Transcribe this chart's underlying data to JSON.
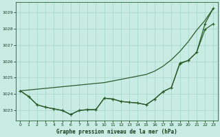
{
  "title": "Graphe pression niveau de la mer (hPa)",
  "background_color": "#c8ebe4",
  "grid_color": "#a8d8cc",
  "line_color": "#2a5c2a",
  "text_color": "#1a3a1a",
  "ylim": [
    1022.4,
    1029.6
  ],
  "xlim": [
    -0.5,
    23.5
  ],
  "yticks": [
    1023,
    1024,
    1025,
    1026,
    1027,
    1028,
    1029
  ],
  "xticks": [
    0,
    1,
    2,
    3,
    4,
    5,
    6,
    7,
    8,
    9,
    10,
    11,
    12,
    13,
    14,
    15,
    16,
    17,
    18,
    19,
    20,
    21,
    22,
    23
  ],
  "series_smooth": [
    1024.2,
    1024.25,
    1024.3,
    1024.35,
    1024.4,
    1024.45,
    1024.5,
    1024.55,
    1024.6,
    1024.65,
    1024.7,
    1024.8,
    1024.9,
    1025.0,
    1025.1,
    1025.2,
    1025.4,
    1025.7,
    1026.1,
    1026.6,
    1027.2,
    1027.9,
    1028.5,
    1029.25
  ],
  "series_main": [
    1024.2,
    1023.85,
    1023.35,
    1023.2,
    1023.1,
    1023.0,
    1022.75,
    1023.0,
    1023.05,
    1023.05,
    1023.75,
    1023.7,
    1023.55,
    1023.5,
    1023.45,
    1023.35,
    1023.7,
    1024.15,
    1024.4,
    1025.9,
    1026.05,
    1026.55,
    1028.3,
    1029.25
  ],
  "series_secondary": [
    1024.2,
    1023.85,
    1023.35,
    1023.2,
    1023.1,
    1023.0,
    1022.75,
    1023.0,
    1023.05,
    1023.05,
    1023.75,
    1023.7,
    1023.55,
    1023.5,
    1023.45,
    1023.35,
    1023.7,
    1024.15,
    1024.4,
    1025.85,
    1026.05,
    1026.55,
    1027.95,
    1028.3
  ]
}
